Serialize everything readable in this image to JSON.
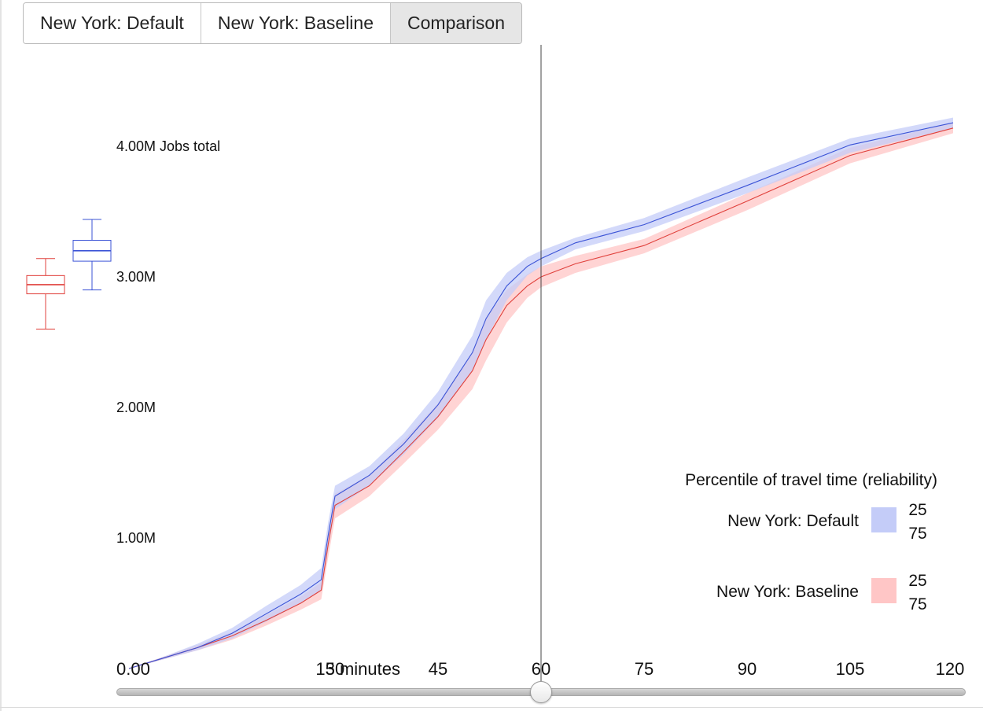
{
  "tabs": [
    {
      "label": "New York: Default"
    },
    {
      "label": "New York: Baseline"
    },
    {
      "label": "Comparison"
    }
  ],
  "colors": {
    "default_line": "#3b53d6",
    "default_band": "#c4ccf8",
    "baseline_line": "#e0413c",
    "baseline_band": "#ffc6c6",
    "cursor": "#444444"
  },
  "slider": {
    "value": 60
  },
  "chart_data": {
    "type": "line",
    "ylabel": "Jobs total",
    "x_unit": "minutes",
    "x_ticks": [
      0,
      15,
      30,
      45,
      60,
      75,
      90,
      105,
      120
    ],
    "x_tick_labels": [
      "0.00",
      "15 minutes",
      "30",
      "45",
      "60",
      "75",
      "90",
      "105",
      "120"
    ],
    "y_tick_labels": [
      {
        "value": 0,
        "label": ""
      },
      {
        "value": 1000000,
        "label": "1.00M"
      },
      {
        "value": 2000000,
        "label": "2.00M"
      },
      {
        "value": 3000000,
        "label": "3.00M"
      },
      {
        "value": 4000000,
        "label": "4.00M Jobs total"
      }
    ],
    "xlim": [
      0,
      120
    ],
    "cursor_x": 60,
    "legend": {
      "title": "Percentile of travel time (reliability)",
      "entries": [
        {
          "name": "New York: Default",
          "upper": "25",
          "lower": "75"
        },
        {
          "name": "New York: Baseline",
          "upper": "25",
          "lower": "75"
        }
      ]
    },
    "series": [
      {
        "name": "New York: Default",
        "x": [
          0,
          5,
          10,
          15,
          20,
          25,
          28,
          29,
          30,
          35,
          40,
          45,
          50,
          52,
          55,
          58,
          60,
          65,
          75,
          90,
          105,
          120
        ],
        "mid": [
          0,
          0.08,
          0.16,
          0.27,
          0.42,
          0.57,
          0.68,
          1.02,
          1.32,
          1.48,
          1.72,
          2.02,
          2.42,
          2.68,
          2.93,
          3.08,
          3.14,
          3.26,
          3.4,
          3.7,
          4.01,
          4.18
        ],
        "high": [
          0,
          0.09,
          0.19,
          0.31,
          0.48,
          0.64,
          0.77,
          1.12,
          1.4,
          1.55,
          1.8,
          2.12,
          2.55,
          2.82,
          3.03,
          3.15,
          3.2,
          3.3,
          3.45,
          3.76,
          4.06,
          4.22
        ],
        "low": [
          0,
          0.07,
          0.14,
          0.23,
          0.36,
          0.5,
          0.6,
          0.92,
          1.22,
          1.4,
          1.64,
          1.92,
          2.28,
          2.52,
          2.82,
          3.01,
          3.08,
          3.21,
          3.35,
          3.64,
          3.95,
          4.14
        ]
      },
      {
        "name": "New York: Baseline",
        "x": [
          0,
          5,
          10,
          15,
          20,
          25,
          28,
          29,
          30,
          35,
          40,
          45,
          50,
          52,
          55,
          58,
          60,
          65,
          75,
          90,
          105,
          120
        ],
        "mid": [
          0,
          0.08,
          0.16,
          0.25,
          0.37,
          0.5,
          0.6,
          0.95,
          1.25,
          1.4,
          1.66,
          1.93,
          2.28,
          2.52,
          2.78,
          2.93,
          3.0,
          3.1,
          3.24,
          3.58,
          3.93,
          4.14
        ],
        "high": [
          0,
          0.09,
          0.18,
          0.28,
          0.41,
          0.55,
          0.66,
          1.04,
          1.34,
          1.48,
          1.75,
          2.03,
          2.42,
          2.68,
          2.9,
          3.02,
          3.08,
          3.16,
          3.29,
          3.64,
          3.99,
          4.18
        ],
        "low": [
          0,
          0.07,
          0.14,
          0.22,
          0.33,
          0.45,
          0.53,
          0.85,
          1.15,
          1.32,
          1.57,
          1.83,
          2.14,
          2.36,
          2.65,
          2.84,
          2.92,
          3.03,
          3.18,
          3.51,
          3.87,
          4.1
        ]
      }
    ],
    "boxplots": [
      {
        "name": "New York: Baseline",
        "min": 2.6,
        "q1": 2.87,
        "median": 2.94,
        "q3": 3.01,
        "max": 3.14
      },
      {
        "name": "New York: Default",
        "min": 2.9,
        "q1": 3.12,
        "median": 3.2,
        "q3": 3.28,
        "max": 3.44
      }
    ]
  }
}
